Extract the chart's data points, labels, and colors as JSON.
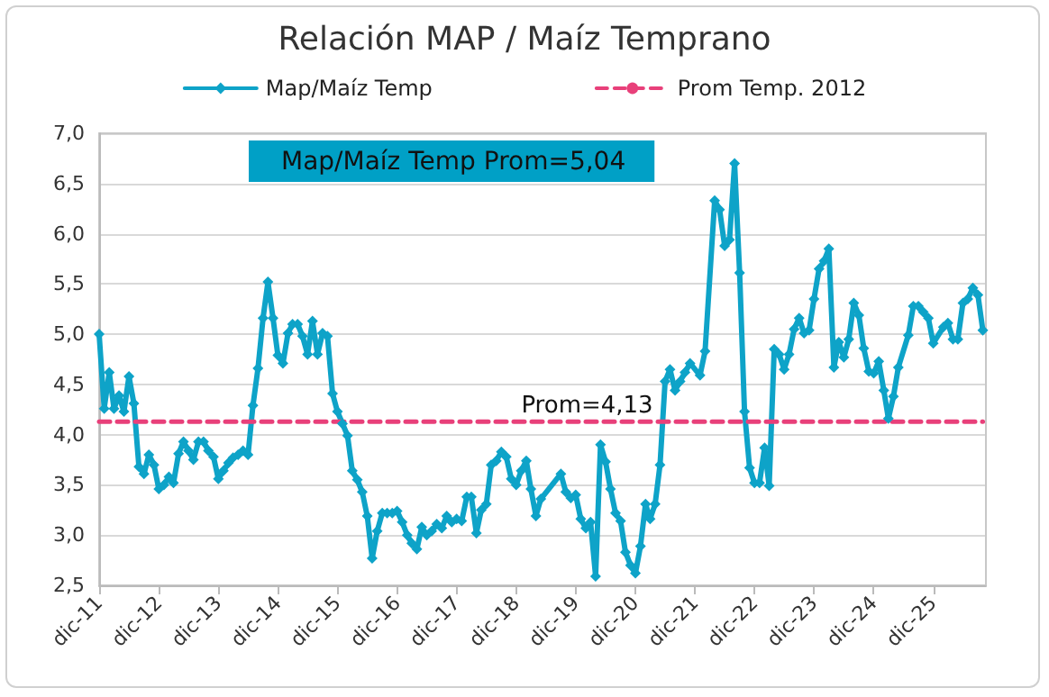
{
  "chart_data": {
    "type": "line",
    "title": "Relación MAP / Maíz Temprano",
    "xlim": [
      "2011-12",
      "2026-10-20"
    ],
    "xticks": [
      {
        "value": "2011-12",
        "label": "dic-11"
      },
      {
        "value": "2012-12",
        "label": "dic-12"
      },
      {
        "value": "2013-12",
        "label": "dic-13"
      },
      {
        "value": "2014-12",
        "label": "dic-14"
      },
      {
        "value": "2015-12",
        "label": "dic-15"
      },
      {
        "value": "2016-12",
        "label": "dic-16"
      },
      {
        "value": "2017-12",
        "label": "dic-17"
      },
      {
        "value": "2018-12",
        "label": "dic-18"
      },
      {
        "value": "2019-12",
        "label": "dic-19"
      },
      {
        "value": "2020-12",
        "label": "dic-20"
      },
      {
        "value": "2021-12",
        "label": "dic-21"
      },
      {
        "value": "2022-12",
        "label": "dic-22"
      },
      {
        "value": "2023-12",
        "label": "dic-23"
      },
      {
        "value": "2024-12",
        "label": "dic-24"
      },
      {
        "value": "2025-12",
        "label": "dic-25"
      }
    ],
    "ylim": [
      2.5,
      7.0
    ],
    "yticks": [
      {
        "value": 2.5,
        "label": "2,5"
      },
      {
        "value": 3.0,
        "label": "3,0"
      },
      {
        "value": 3.5,
        "label": "3,5"
      },
      {
        "value": 4.0,
        "label": "4,0"
      },
      {
        "value": 4.5,
        "label": "4,5"
      },
      {
        "value": 5.0,
        "label": "5,0"
      },
      {
        "value": 5.5,
        "label": "5,5"
      },
      {
        "value": 6.0,
        "label": "6,0"
      },
      {
        "value": 6.5,
        "label": "6,5"
      },
      {
        "value": 7.0,
        "label": "7,0"
      }
    ],
    "grid": "y",
    "legend": "top",
    "annotations": [
      "Map/Maíz Temp Prom=5,04",
      {
        "text": "Prom=4,13",
        "x": "2019-01",
        "y": 4.13
      }
    ],
    "series": [
      {
        "name": "Map/Maíz Temp",
        "color": "#0ea3c8",
        "marker": "diamond",
        "line_style": "solid",
        "x": [
          "2011-12",
          "2012-01",
          "2012-02",
          "2012-03",
          "2012-04",
          "2012-05",
          "2012-06",
          "2012-07",
          "2012-08",
          "2012-09",
          "2012-10",
          "2012-11",
          "2012-12",
          "2013-01",
          "2013-02",
          "2013-03",
          "2013-04",
          "2013-05",
          "2013-06",
          "2013-07",
          "2013-08",
          "2013-09",
          "2013-10",
          "2013-11",
          "2013-12",
          "2014-01",
          "2014-02",
          "2014-03",
          "2014-04",
          "2014-05",
          "2014-06",
          "2014-07",
          "2014-08",
          "2014-09",
          "2014-10",
          "2014-11",
          "2014-12",
          "2015-01",
          "2015-02",
          "2015-03",
          "2015-04",
          "2015-05",
          "2015-06",
          "2015-07",
          "2015-08",
          "2015-09",
          "2015-10",
          "2015-11",
          "2015-12",
          "2016-01",
          "2016-02",
          "2016-03",
          "2016-04",
          "2016-05",
          "2016-06",
          "2016-07",
          "2016-08",
          "2016-09",
          "2016-10",
          "2016-11",
          "2016-12",
          "2017-01",
          "2017-02",
          "2017-03",
          "2017-04",
          "2017-05",
          "2017-06",
          "2017-07",
          "2017-08",
          "2017-09",
          "2017-10",
          "2017-11",
          "2017-12",
          "2018-01",
          "2018-02",
          "2018-03",
          "2018-04",
          "2018-05",
          "2018-06",
          "2018-07",
          "2018-08",
          "2018-09",
          "2018-10",
          "2018-11",
          "2018-12",
          "2019-01",
          "2019-02",
          "2019-03",
          "2019-04",
          "2019-05",
          "2019-09",
          "2019-10",
          "2019-11",
          "2019-12",
          "2020-01",
          "2020-02",
          "2020-03",
          "2020-04",
          "2020-05",
          "2020-06",
          "2020-07",
          "2020-08",
          "2020-09",
          "2020-10",
          "2020-11",
          "2020-12",
          "2021-01",
          "2021-02",
          "2021-03",
          "2021-04",
          "2021-05",
          "2021-06",
          "2021-07",
          "2021-08",
          "2021-09",
          "2021-10",
          "2021-11",
          "2022-01",
          "2022-02",
          "2022-04",
          "2022-05",
          "2022-06",
          "2022-07",
          "2022-08",
          "2022-09",
          "2022-10",
          "2022-11",
          "2022-12",
          "2023-01",
          "2023-02",
          "2023-03",
          "2023-04",
          "2023-05",
          "2023-06",
          "2023-07",
          "2023-08",
          "2023-09",
          "2023-10",
          "2023-11",
          "2023-12",
          "2024-01",
          "2024-02",
          "2024-03",
          "2024-04",
          "2024-05",
          "2024-06",
          "2024-07",
          "2024-08",
          "2024-09",
          "2024-10",
          "2024-11",
          "2024-12",
          "2025-01",
          "2025-02",
          "2025-03",
          "2025-04",
          "2025-05",
          "2025-07",
          "2025-08",
          "2025-09",
          "2025-10",
          "2025-11",
          "2025-12",
          "2026-02",
          "2026-03",
          "2026-04",
          "2026-05",
          "2026-06",
          "2026-07",
          "2026-08",
          "2026-09",
          "2026-10"
        ],
        "values": [
          5.0,
          4.26,
          4.62,
          4.26,
          4.39,
          4.23,
          4.58,
          4.31,
          3.68,
          3.61,
          3.8,
          3.7,
          3.46,
          3.5,
          3.58,
          3.52,
          3.81,
          3.93,
          3.84,
          3.75,
          3.93,
          3.93,
          3.84,
          3.78,
          3.56,
          3.64,
          3.72,
          3.77,
          3.8,
          3.84,
          3.8,
          4.29,
          4.66,
          5.16,
          5.52,
          5.16,
          4.79,
          4.71,
          5.01,
          5.1,
          5.1,
          4.98,
          4.8,
          5.13,
          4.8,
          5.01,
          4.98,
          4.41,
          4.23,
          4.11,
          3.99,
          3.64,
          3.55,
          3.43,
          3.19,
          2.77,
          3.04,
          3.22,
          3.22,
          3.22,
          3.24,
          3.13,
          3.0,
          2.92,
          2.86,
          3.08,
          3.0,
          3.04,
          3.11,
          3.07,
          3.19,
          3.13,
          3.16,
          3.14,
          3.38,
          3.38,
          3.02,
          3.25,
          3.31,
          3.7,
          3.74,
          3.83,
          3.78,
          3.56,
          3.5,
          3.64,
          3.74,
          3.46,
          3.19,
          3.36,
          3.61,
          3.43,
          3.37,
          3.4,
          3.16,
          3.07,
          3.13,
          2.59,
          3.9,
          3.73,
          3.46,
          3.22,
          3.14,
          2.83,
          2.7,
          2.62,
          2.89,
          3.31,
          3.16,
          3.31,
          3.7,
          4.53,
          4.65,
          4.44,
          4.53,
          4.62,
          4.71,
          4.59,
          4.83,
          6.33,
          6.24,
          5.88,
          5.94,
          6.7,
          5.61,
          4.23,
          3.67,
          3.52,
          3.52,
          3.87,
          3.49,
          4.85,
          4.8,
          4.65,
          4.8,
          5.05,
          5.16,
          5.01,
          5.04,
          5.35,
          5.65,
          5.73,
          5.85,
          4.67,
          4.92,
          4.77,
          4.95,
          5.31,
          5.19,
          4.86,
          4.63,
          4.61,
          4.73,
          4.44,
          4.16,
          4.38,
          4.67,
          4.99,
          5.28,
          5.28,
          5.22,
          5.16,
          4.91,
          5.07,
          5.11,
          4.95,
          4.95,
          5.31,
          5.35,
          5.46,
          5.39,
          5.04
        ]
      },
      {
        "name": "Prom Temp. 2012",
        "color": "#e8407a",
        "marker": "none",
        "line_style": "dashed",
        "x": [
          "2011-12",
          "2026-10"
        ],
        "values": [
          4.13,
          4.13
        ]
      }
    ]
  }
}
